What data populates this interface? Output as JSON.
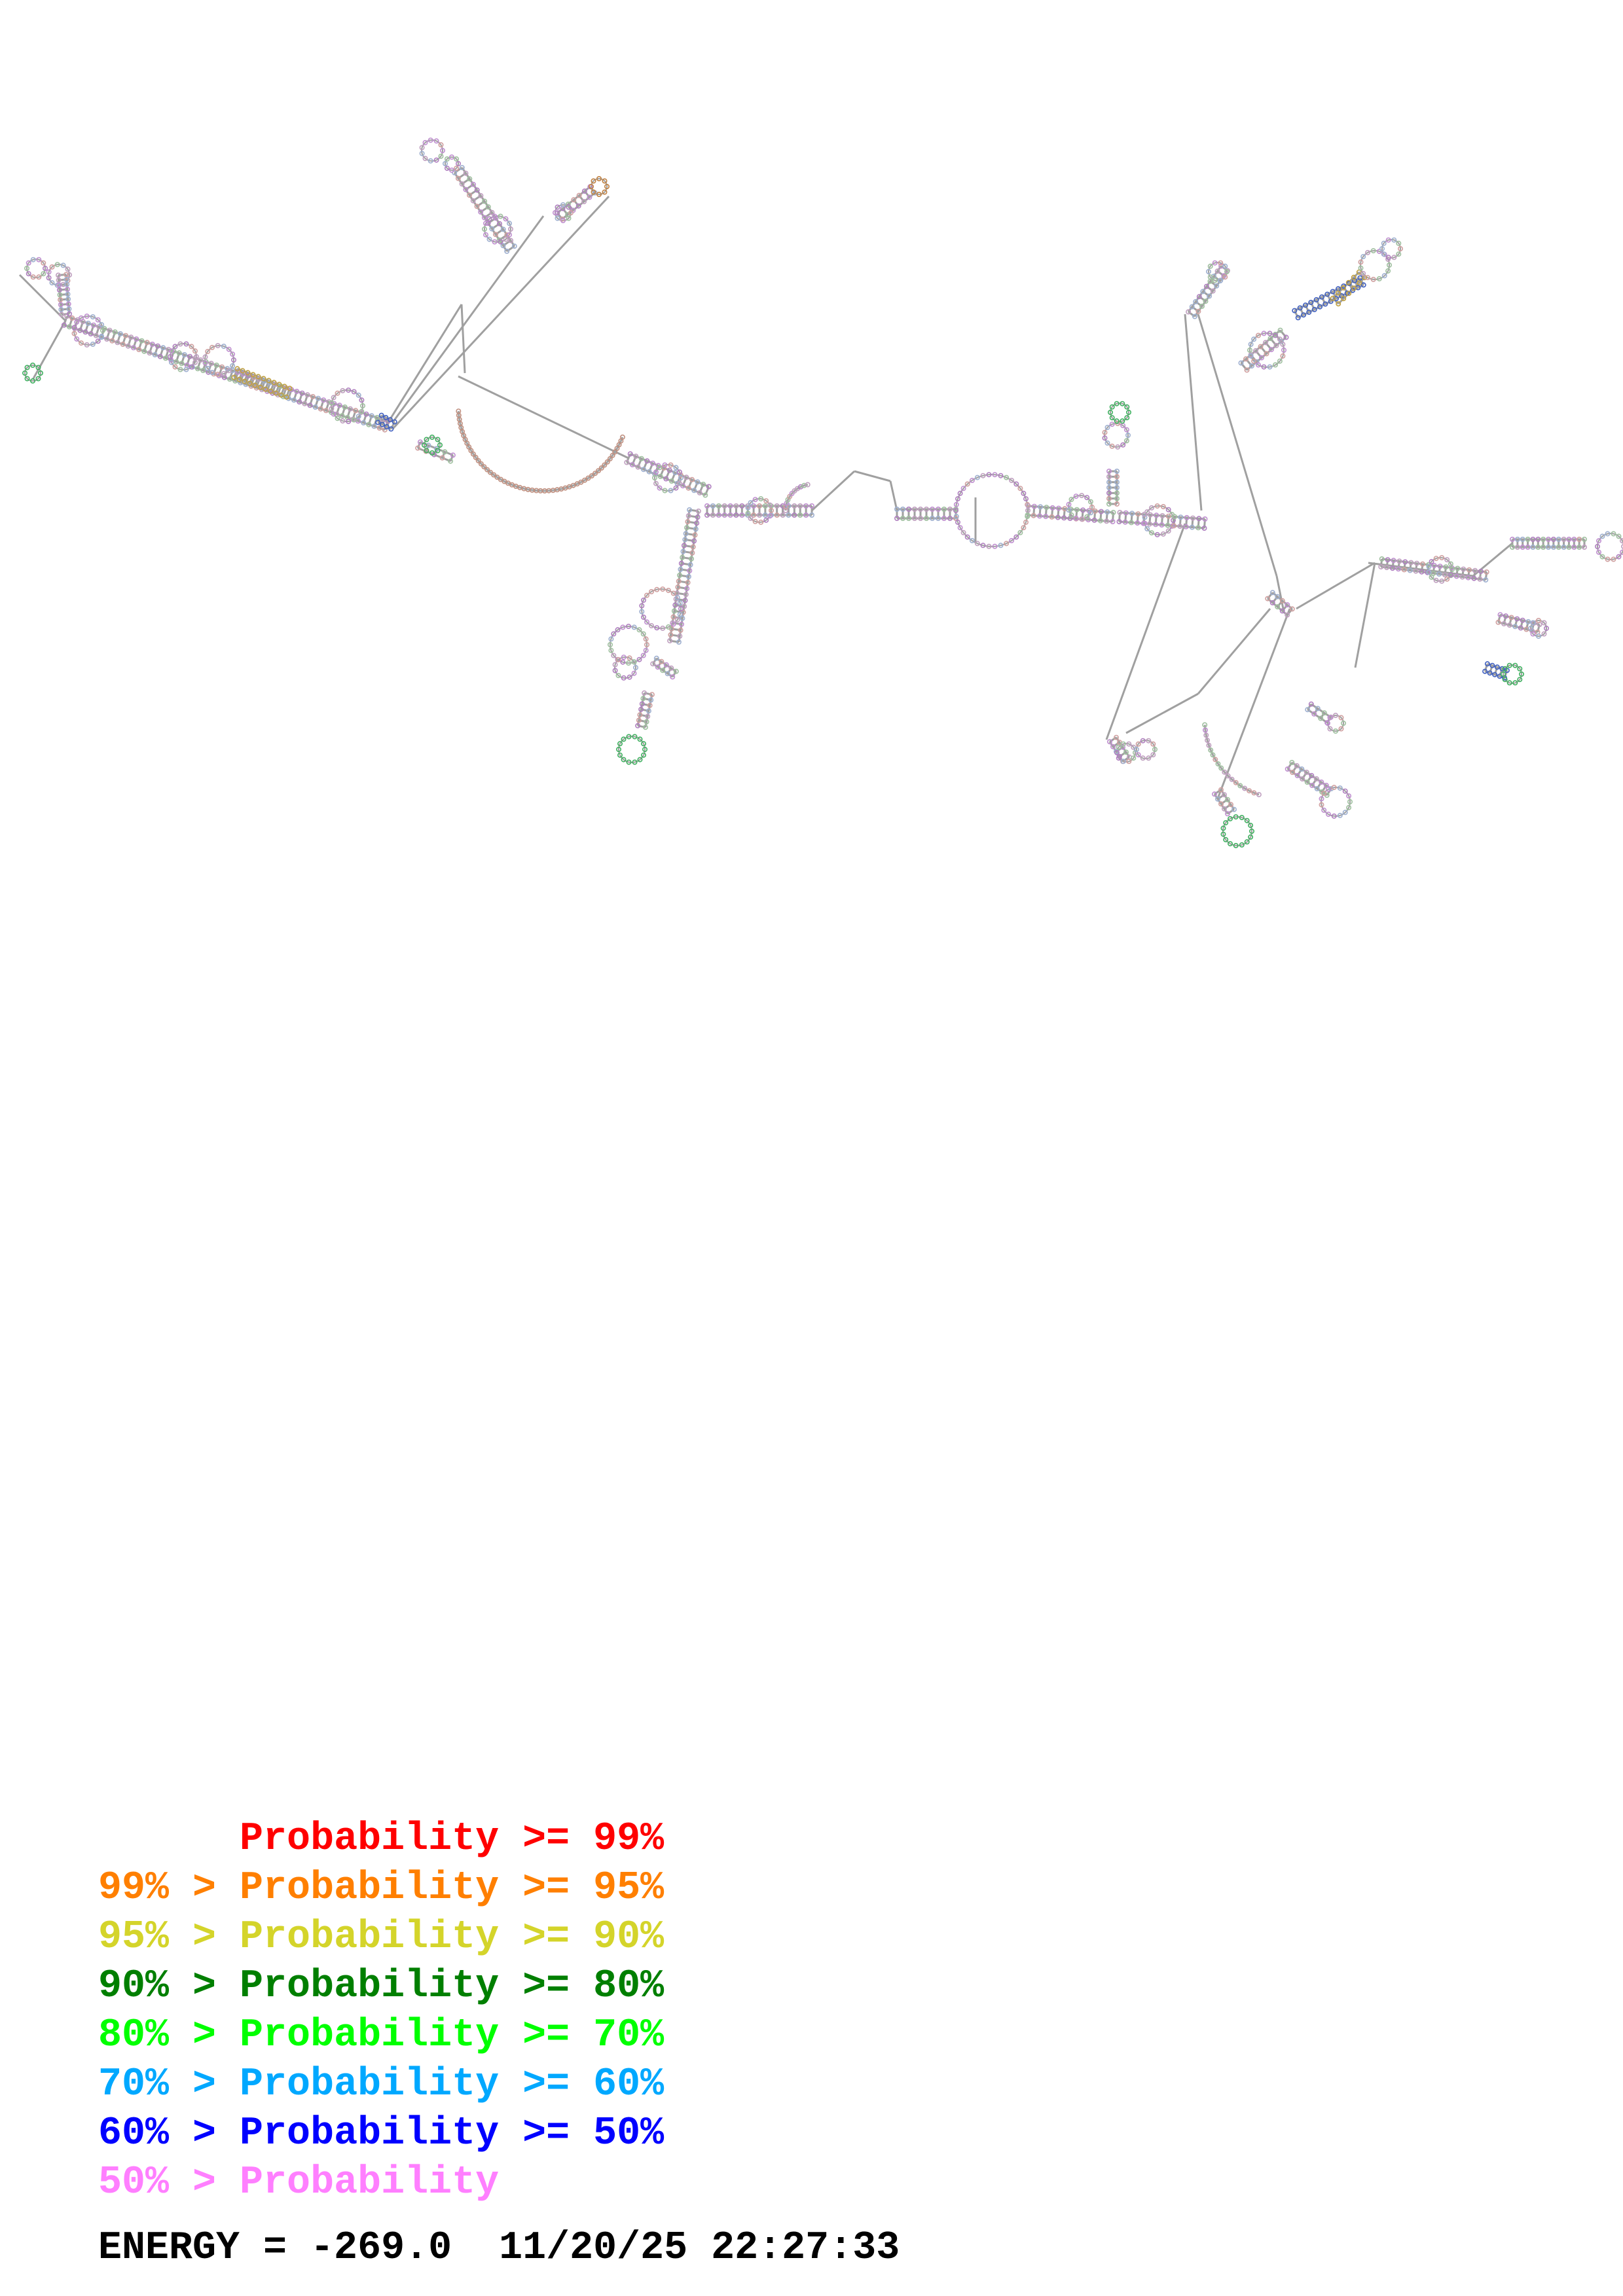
{
  "legend": [
    {
      "prefix": "",
      "label": "Probability >= 99%",
      "color": "#ff0000",
      "indent": 4
    },
    {
      "prefix": "99% > ",
      "label": "Probability >= 95%",
      "color": "#ff7f00"
    },
    {
      "prefix": "95% > ",
      "label": "Probability >= 90%",
      "color": "#d4d42a"
    },
    {
      "prefix": "90% > ",
      "label": "Probability >= 80%",
      "color": "#007f00"
    },
    {
      "prefix": "80% > ",
      "label": "Probability >= 70%",
      "color": "#00ff00"
    },
    {
      "prefix": "70% > ",
      "label": "Probability >= 60%",
      "color": "#00a8ff"
    },
    {
      "prefix": "60% > ",
      "label": "Probability >= 50%",
      "color": "#0000ff"
    },
    {
      "prefix": "50% > ",
      "label": "Probability",
      "color": "#ff7fff"
    }
  ],
  "footer": {
    "energy": "ENERGY = -269.0",
    "timestamp": "11/20/25 22:27:33"
  },
  "colors": {
    "backbone": "#a0a0a0",
    "base_default": "#b080c0"
  }
}
